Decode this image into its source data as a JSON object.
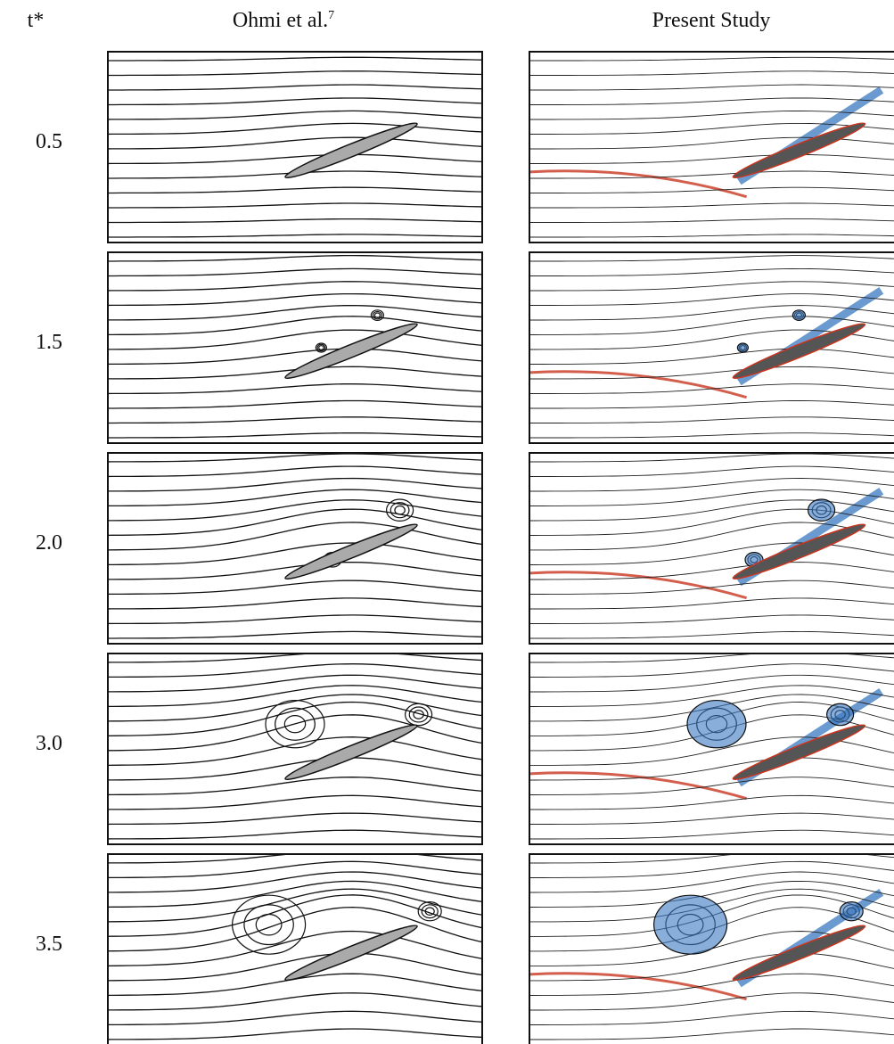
{
  "header": {
    "time_label": "t*",
    "left_title": "Ohmi et al.",
    "left_title_ref": "7",
    "right_title": "Present Study"
  },
  "rows": [
    {
      "label": "0.5"
    },
    {
      "label": "1.5"
    },
    {
      "label": "2.0"
    },
    {
      "label": "3.0"
    },
    {
      "label": "3.5"
    }
  ]
}
